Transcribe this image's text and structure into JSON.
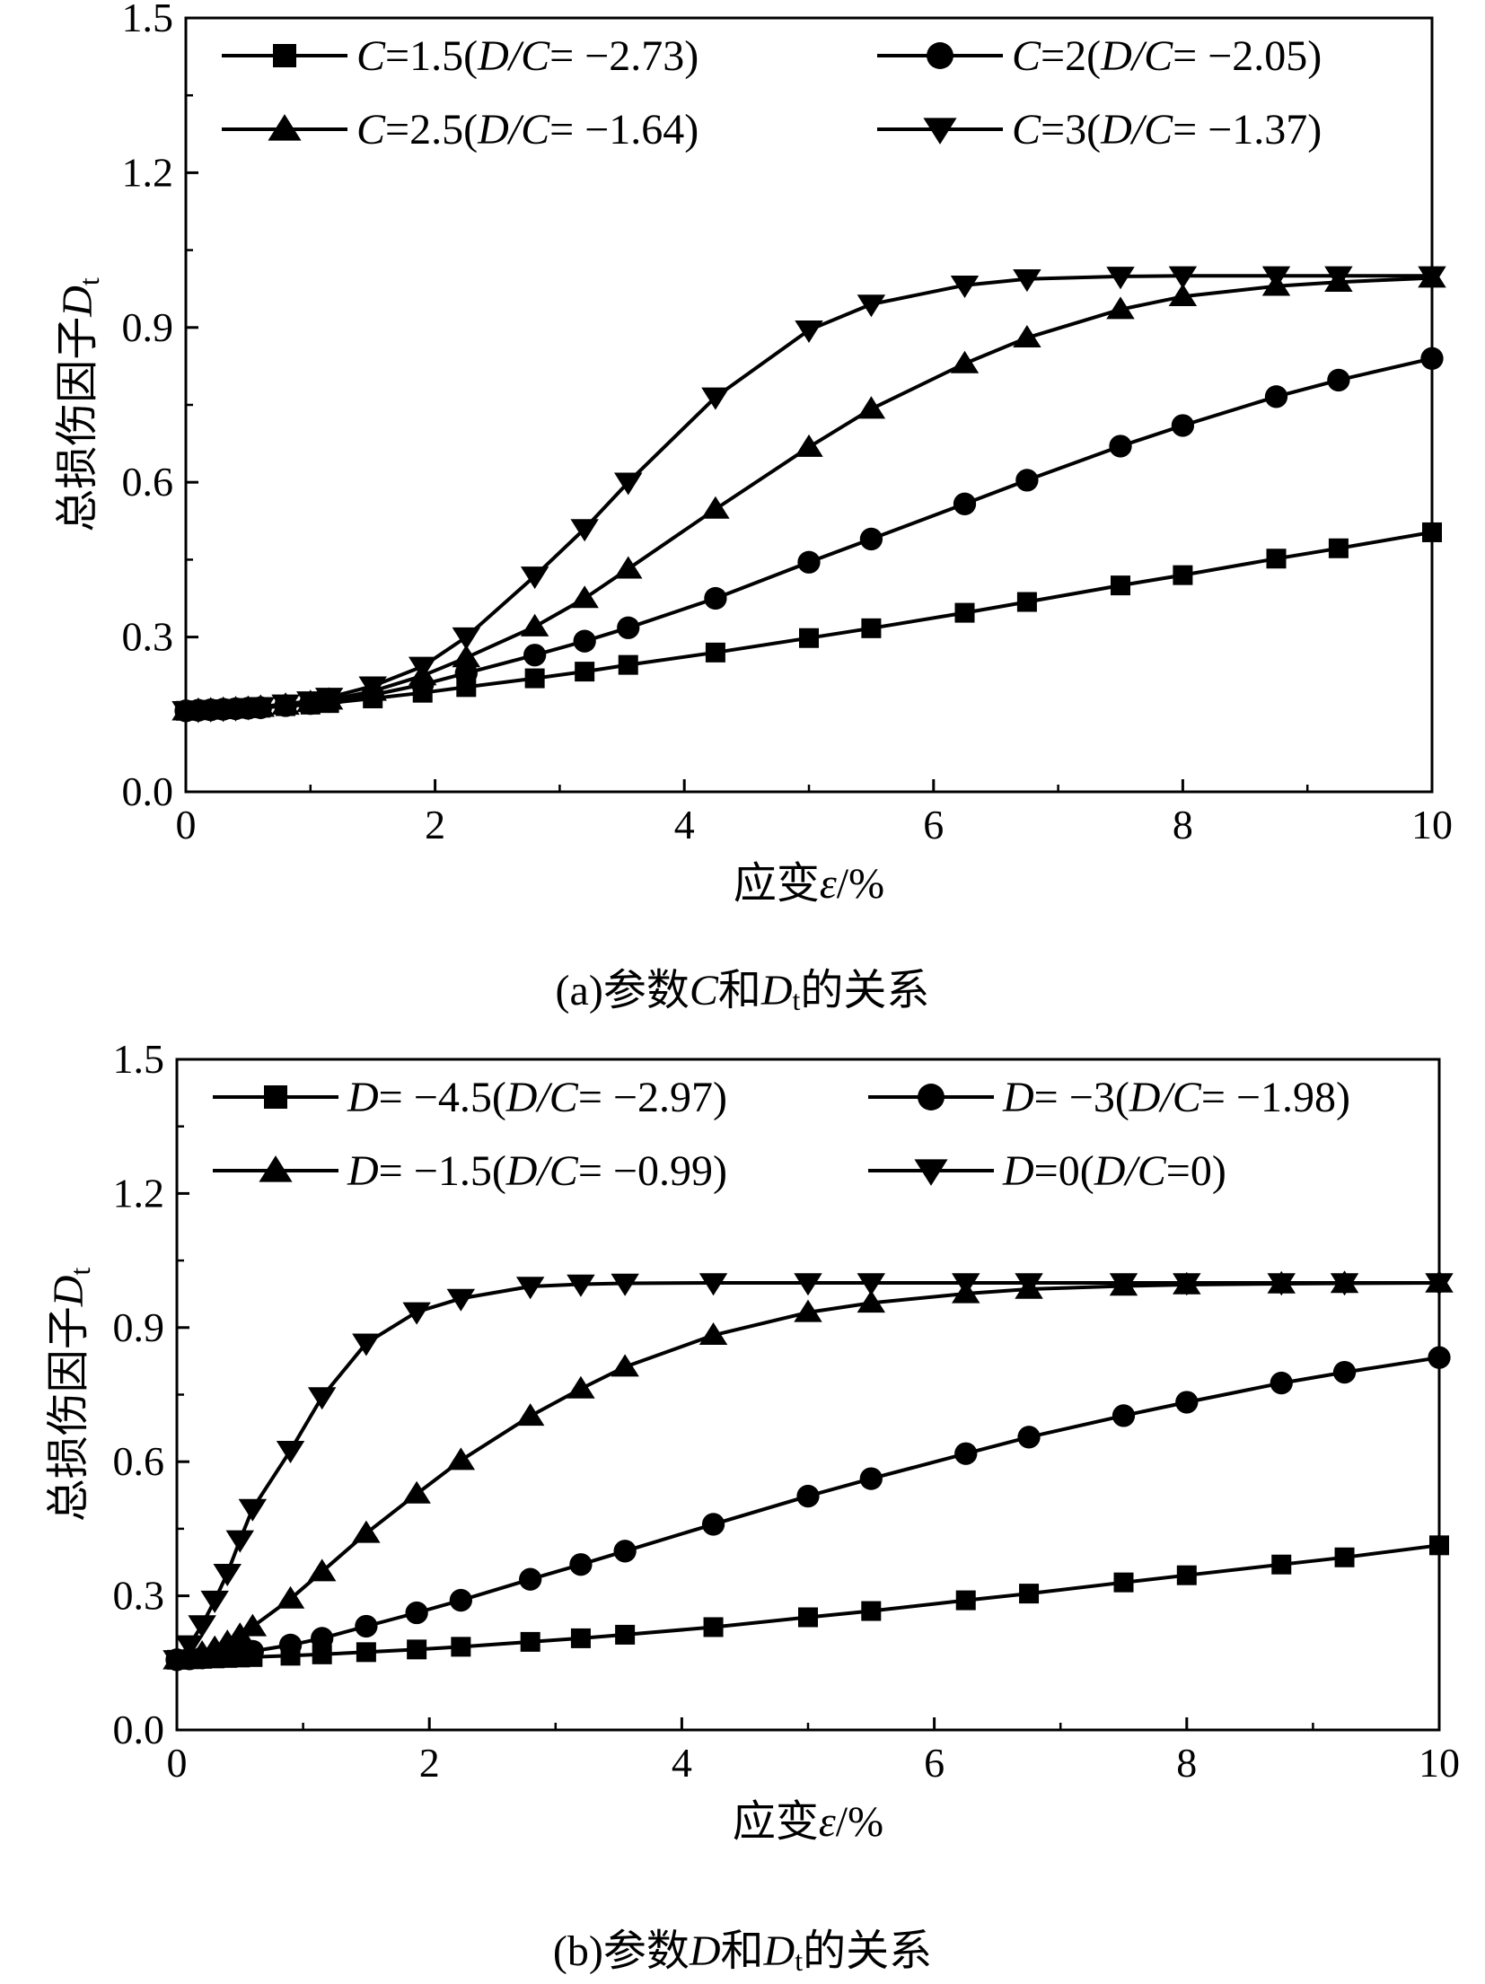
{
  "charts": [
    {
      "caption_prefix": "(a)参数",
      "caption_var": "C",
      "caption_mid": "和",
      "caption_dvar": "D",
      "caption_sub": "t",
      "caption_suffix": "的关系",
      "ylabel_text": "总损伤因子",
      "ylabel_var": "D",
      "ylabel_sub": "t",
      "xlabel_text": "应变",
      "xlabel_var": "ε",
      "xlabel_unit": "/%"
    },
    {
      "caption_prefix": "(b)参数",
      "caption_var": "D",
      "caption_mid": "和",
      "caption_dvar": "D",
      "caption_sub": "t",
      "caption_suffix": "的关系",
      "ylabel_text": "总损伤因子",
      "ylabel_var": "D",
      "ylabel_sub": "t",
      "xlabel_text": "应变",
      "xlabel_var": "ε",
      "xlabel_unit": "/%"
    }
  ],
  "chart_data": [
    {
      "type": "line",
      "xlabel": "应变ε/%",
      "ylabel": "总损伤因子Dt",
      "xlim": [
        0,
        10
      ],
      "ylim": [
        0,
        1.5
      ],
      "xticks": [
        0,
        2,
        4,
        6,
        8,
        10
      ],
      "yticks": [
        "0.0",
        "0.3",
        "0.6",
        "0.9",
        "1.2",
        "1.5"
      ],
      "grid": false,
      "legend_position": "top",
      "x": [
        0,
        0.1,
        0.2,
        0.3,
        0.4,
        0.5,
        0.6,
        0.8,
        1.0,
        1.15,
        1.5,
        1.9,
        2.25,
        2.8,
        3.2,
        3.55,
        4.25,
        5.0,
        5.5,
        6.25,
        6.75,
        7.5,
        8.0,
        8.75,
        9.25,
        10.0
      ],
      "series": [
        {
          "label_pre": "C",
          "label_mid": "=1.5(",
          "label_dc": "D/C",
          "label_post": "= −2.73)",
          "marker": "square",
          "values": [
            0.157,
            0.158,
            0.159,
            0.16,
            0.161,
            0.162,
            0.163,
            0.166,
            0.169,
            0.172,
            0.181,
            0.192,
            0.203,
            0.22,
            0.233,
            0.246,
            0.27,
            0.298,
            0.317,
            0.347,
            0.368,
            0.4,
            0.42,
            0.452,
            0.472,
            0.503
          ]
        },
        {
          "label_pre": "C",
          "label_mid": "=2(",
          "label_dc": "D/C",
          "label_post": "= −2.05)",
          "marker": "circle",
          "values": [
            0.157,
            0.158,
            0.159,
            0.16,
            0.161,
            0.162,
            0.163,
            0.167,
            0.171,
            0.175,
            0.188,
            0.208,
            0.23,
            0.265,
            0.292,
            0.318,
            0.375,
            0.445,
            0.49,
            0.558,
            0.604,
            0.67,
            0.71,
            0.766,
            0.798,
            0.84
          ]
        },
        {
          "label_pre": "C",
          "label_mid": "=2.5(",
          "label_dc": "D/C",
          "label_post": "= −1.64)",
          "marker": "triangle-up",
          "values": [
            0.157,
            0.158,
            0.159,
            0.16,
            0.161,
            0.162,
            0.164,
            0.168,
            0.173,
            0.178,
            0.195,
            0.225,
            0.26,
            0.32,
            0.375,
            0.432,
            0.548,
            0.668,
            0.742,
            0.83,
            0.88,
            0.935,
            0.96,
            0.98,
            0.988,
            0.996
          ]
        },
        {
          "label_pre": "C",
          "label_mid": "=3(",
          "label_dc": "D/C",
          "label_post": "= −1.37)",
          "marker": "triangle-down",
          "values": [
            0.157,
            0.158,
            0.159,
            0.16,
            0.161,
            0.163,
            0.165,
            0.17,
            0.176,
            0.183,
            0.205,
            0.243,
            0.3,
            0.418,
            0.51,
            0.6,
            0.765,
            0.895,
            0.945,
            0.982,
            0.994,
            0.999,
            1.0,
            1.0,
            1.0,
            1.0
          ]
        }
      ]
    },
    {
      "type": "line",
      "xlabel": "应变ε/%",
      "ylabel": "总损伤因子Dt",
      "xlim": [
        0,
        10
      ],
      "ylim": [
        0,
        1.5
      ],
      "xticks": [
        0,
        2,
        4,
        6,
        8,
        10
      ],
      "yticks": [
        "0.0",
        "0.3",
        "0.6",
        "0.9",
        "1.2",
        "1.5"
      ],
      "grid": false,
      "legend_position": "top",
      "x": [
        0,
        0.1,
        0.2,
        0.3,
        0.4,
        0.5,
        0.6,
        0.9,
        1.15,
        1.5,
        1.9,
        2.25,
        2.8,
        3.2,
        3.55,
        4.25,
        5.0,
        5.5,
        6.25,
        6.75,
        7.5,
        8.0,
        8.75,
        9.25,
        10.0
      ],
      "series": [
        {
          "label_pre": "D",
          "label_mid": "= −4.5(",
          "label_dc": "D/C",
          "label_post": "= −2.97)",
          "marker": "square",
          "values": [
            0.157,
            0.158,
            0.159,
            0.16,
            0.161,
            0.162,
            0.163,
            0.166,
            0.169,
            0.174,
            0.18,
            0.186,
            0.197,
            0.205,
            0.213,
            0.23,
            0.252,
            0.266,
            0.29,
            0.305,
            0.33,
            0.346,
            0.37,
            0.386,
            0.413
          ]
        },
        {
          "label_pre": "D",
          "label_mid": "= −3(",
          "label_dc": "D/C",
          "label_post": "= −1.98)",
          "marker": "circle",
          "values": [
            0.157,
            0.159,
            0.161,
            0.164,
            0.167,
            0.171,
            0.176,
            0.19,
            0.205,
            0.232,
            0.262,
            0.29,
            0.337,
            0.37,
            0.4,
            0.46,
            0.523,
            0.562,
            0.618,
            0.655,
            0.703,
            0.733,
            0.776,
            0.8,
            0.833
          ]
        },
        {
          "label_pre": "D",
          "label_mid": "= −1.5(",
          "label_dc": "D/C",
          "label_post": "= −0.99)",
          "marker": "triangle-up",
          "values": [
            0.157,
            0.163,
            0.172,
            0.183,
            0.196,
            0.212,
            0.231,
            0.293,
            0.354,
            0.44,
            0.528,
            0.603,
            0.702,
            0.763,
            0.812,
            0.883,
            0.934,
            0.955,
            0.976,
            0.986,
            0.993,
            0.996,
            0.998,
            0.999,
            1.0
          ]
        },
        {
          "label_pre": "D",
          "label_mid": "=0(",
          "label_dc": "D/C",
          "label_post": "=0)",
          "marker": "triangle-down",
          "values": [
            0.157,
            0.19,
            0.235,
            0.29,
            0.35,
            0.425,
            0.495,
            0.625,
            0.745,
            0.865,
            0.935,
            0.965,
            0.992,
            0.997,
            0.999,
            1.0,
            1.0,
            1.0,
            1.0,
            1.0,
            1.0,
            1.0,
            1.0,
            1.0,
            1.0
          ]
        }
      ]
    }
  ]
}
